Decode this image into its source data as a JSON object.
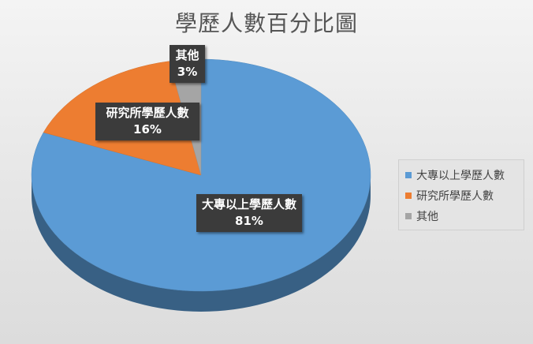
{
  "chart_data": {
    "type": "pie",
    "title": "學歷人數百分比圖",
    "slices": [
      {
        "name": "大專以上學歷人數",
        "value": 81,
        "label": "81%",
        "color": "#5b9bd5"
      },
      {
        "name": "研究所學歷人數",
        "value": 16,
        "label": "16%",
        "color": "#ed7d31"
      },
      {
        "name": "其他",
        "value": 3,
        "label": "3%",
        "color": "#a5a5a5"
      }
    ],
    "legend_position": "right",
    "style": "3d"
  }
}
